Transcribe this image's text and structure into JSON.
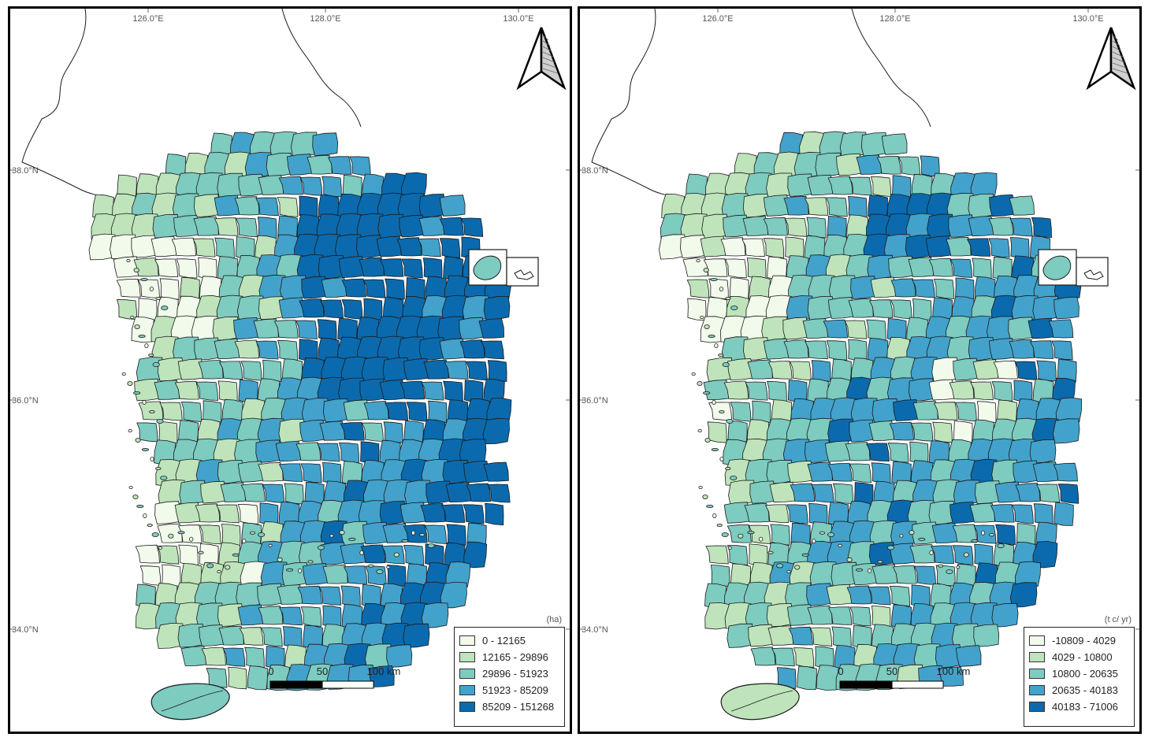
{
  "colors": {
    "class1": "#f2faeb",
    "class2": "#bfe4bb",
    "class3": "#7ecbc0",
    "class4": "#43a2cb",
    "class5": "#0b6aad",
    "outline": "#1a1a1a"
  },
  "graticule": {
    "lon_labels": [
      "126.0°E",
      "128.0°E",
      "130.0°E"
    ],
    "lat_labels": [
      "38.0°N",
      "36.0°N",
      "34.0°N"
    ]
  },
  "scale_bar": {
    "labels": [
      "0",
      "50",
      "100 km"
    ]
  },
  "maps": [
    {
      "id": "left",
      "unit": "(ha)",
      "legend": [
        "0 - 12165",
        "12165 - 29896",
        "29896 - 51923",
        "51923 - 85209",
        "85209 - 151268"
      ],
      "jeju_class": 3,
      "ulleung_class": 3
    },
    {
      "id": "right",
      "unit": "(t c/ yr)",
      "legend": [
        "-10809 - 4029",
        "4029 - 10800",
        "10800 - 20635",
        "20635 - 40183",
        "40183 - 71006"
      ],
      "jeju_class": 2,
      "ulleung_class": 3
    }
  ]
}
